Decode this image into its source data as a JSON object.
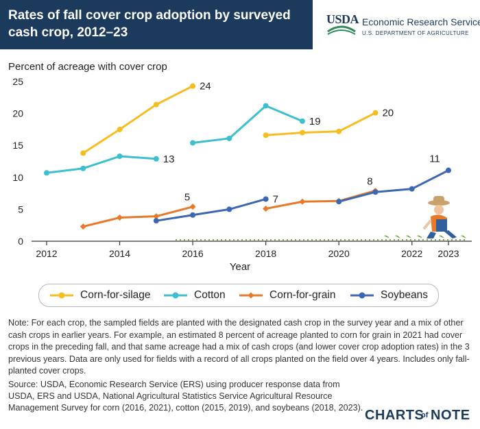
{
  "header": {
    "title": "Rates of fall cover crop adoption by surveyed cash crop, 2012–23",
    "agency_mark": "USDA",
    "agency_name": "Economic Research Service",
    "agency_dept": "U.S. DEPARTMENT OF AGRICULTURE"
  },
  "colors": {
    "header_bg": "#1b3a5c",
    "corn_silage": "#f5bd1f",
    "cotton": "#3cbfcf",
    "corn_grain": "#e8792b",
    "soybeans": "#3b68b0"
  },
  "chart_data": {
    "type": "line",
    "title": "Rates of fall cover crop adoption by surveyed cash crop, 2012–23",
    "ylabel": "Percent of acreage with cover crop",
    "xlabel": "Year",
    "ylim": [
      0,
      25
    ],
    "xlim": [
      2012,
      2023
    ],
    "yticks": [
      "0",
      "5",
      "10",
      "15",
      "20",
      "25"
    ],
    "xticks": [
      "2012",
      "2014",
      "2016",
      "2018",
      "2020",
      "2022",
      "2023"
    ],
    "grid": false,
    "legend_position": "bottom",
    "series": [
      {
        "name": "Corn-for-silage",
        "color_key": "corn_silage",
        "segments": [
          {
            "x": [
              2013,
              2014,
              2015,
              2016
            ],
            "y": [
              13.8,
              17.5,
              21.4,
              24.3
            ],
            "end_label": "24"
          },
          {
            "x": [
              2018,
              2019,
              2020,
              2021
            ],
            "y": [
              16.6,
              17.0,
              17.2,
              20.1
            ],
            "end_label": "20"
          }
        ]
      },
      {
        "name": "Cotton",
        "color_key": "cotton",
        "segments": [
          {
            "x": [
              2012,
              2013,
              2014,
              2015
            ],
            "y": [
              10.7,
              11.4,
              13.3,
              12.9
            ],
            "end_label": "13"
          },
          {
            "x": [
              2016,
              2017,
              2018,
              2019
            ],
            "y": [
              15.4,
              16.1,
              21.2,
              18.8
            ],
            "end_label": "19"
          }
        ]
      },
      {
        "name": "Corn-for-grain",
        "color_key": "corn_grain",
        "segments": [
          {
            "x": [
              2013,
              2014,
              2015,
              2016
            ],
            "y": [
              2.3,
              3.7,
              3.9,
              5.4
            ],
            "end_label": "5"
          },
          {
            "x": [
              2018,
              2019,
              2020,
              2021
            ],
            "y": [
              5.1,
              6.2,
              6.3,
              7.9
            ],
            "end_label": "8"
          }
        ]
      },
      {
        "name": "Soybeans",
        "color_key": "soybeans",
        "segments": [
          {
            "x": [
              2015,
              2016,
              2017,
              2018
            ],
            "y": [
              3.2,
              4.1,
              5.0,
              6.6
            ],
            "end_label": "7"
          },
          {
            "x": [
              2020,
              2021,
              2022,
              2023
            ],
            "y": [
              6.2,
              7.7,
              8.2,
              11.1
            ],
            "end_label": "11"
          }
        ]
      }
    ]
  },
  "note": "Note: For each crop, the sampled fields are planted with the designated cash crop in the survey year and a mix of other cash crops in earlier years. For example, an estimated 8 percent of acreage planted to corn for grain in 2021 had cover crops in the preceding fall, and that same acreage had a mix of cash crops (and lower cover crop adoption rates) in the 3 previous years. Data are only used for fields with a record of all crops planted on the field over 4 years. Includes only fall-planted cover crops.",
  "source": "Source: USDA, Economic Research Service (ERS) using producer response data from USDA, ERS and USDA, National Agricultural Statistics Service Agricultural Resource Management Survey for corn (2016, 2021), cotton (2015, 2019), and soybeans (2018, 2023).",
  "branding": {
    "charts": "CHARTS",
    "of": "of",
    "note": "NOTE"
  }
}
